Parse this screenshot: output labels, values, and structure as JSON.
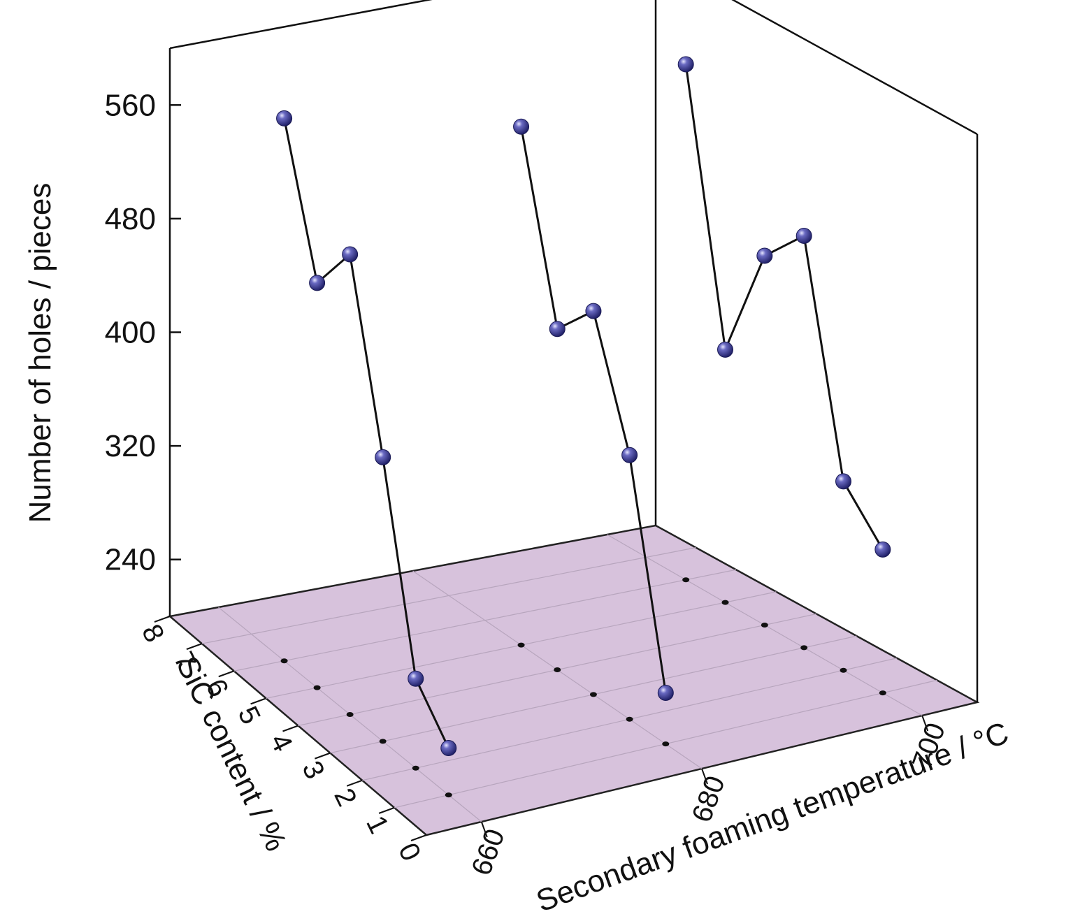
{
  "chart_data": {
    "type": "3d-scatter-line",
    "title": "",
    "xlabel": "Secondary foaming temperature / °C",
    "ylabel": "SiC content / %",
    "zlabel": "Number of holes / pieces",
    "x_ticks": [
      "660",
      "680",
      "700"
    ],
    "y_ticks": [
      "0",
      "1",
      "2",
      "3",
      "4",
      "5",
      "6",
      "7",
      "8"
    ],
    "z_ticks": [
      "240",
      "320",
      "400",
      "480",
      "560"
    ],
    "xlim": [
      655,
      705
    ],
    "ylim": [
      0,
      8
    ],
    "zlim": [
      200,
      600
    ],
    "floor_color": "#d7c2dc",
    "marker_color": "#3c3c8c",
    "line_color": "#111111",
    "series": [
      {
        "x": 660,
        "points": [
          [
            1,
            233
          ],
          [
            2,
            263
          ],
          [
            3,
            400
          ],
          [
            4,
            524
          ],
          [
            5,
            485
          ],
          [
            6,
            582
          ]
        ]
      },
      {
        "x": 680,
        "points": [
          [
            1,
            236
          ],
          [
            2,
            386
          ],
          [
            3,
            470
          ],
          [
            4,
            440
          ],
          [
            5,
            565
          ]
        ]
      },
      {
        "x": 700,
        "points": [
          [
            1,
            301
          ],
          [
            2,
            333
          ],
          [
            3,
            490
          ],
          [
            4,
            460
          ],
          [
            5,
            378
          ],
          [
            6,
            563
          ]
        ]
      }
    ],
    "grid": true
  }
}
